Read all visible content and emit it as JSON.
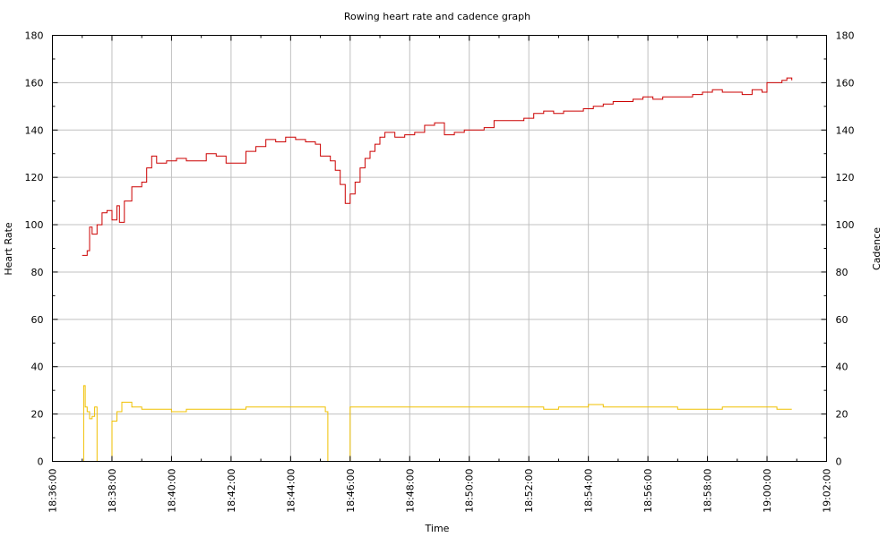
{
  "chart_data": {
    "type": "line",
    "title": "Rowing heart rate and cadence graph",
    "xlabel": "Time",
    "ylabel_left": "Heart Rate",
    "ylabel_right": "Cadence",
    "xlim": [
      "18:36:00",
      "19:02:00"
    ],
    "ylim": [
      0,
      180
    ],
    "y2lim": [
      0,
      180
    ],
    "grid": true,
    "x_ticks": [
      "18:36:00",
      "18:38:00",
      "18:40:00",
      "18:42:00",
      "18:44:00",
      "18:46:00",
      "18:48:00",
      "18:50:00",
      "18:52:00",
      "18:54:00",
      "18:56:00",
      "18:58:00",
      "19:00:00",
      "19:02:00"
    ],
    "y_ticks": [
      0,
      20,
      40,
      60,
      80,
      100,
      120,
      140,
      160,
      180
    ],
    "y2_ticks": [
      0,
      20,
      40,
      60,
      80,
      100,
      120,
      140,
      160,
      180
    ],
    "series": [
      {
        "axis": "left",
        "color": "#cc0000",
        "points": [
          [
            "18:37:00",
            87
          ],
          [
            "18:37:10",
            89
          ],
          [
            "18:37:15",
            99
          ],
          [
            "18:37:20",
            96
          ],
          [
            "18:37:30",
            100
          ],
          [
            "18:37:40",
            105
          ],
          [
            "18:37:50",
            106
          ],
          [
            "18:38:00",
            102
          ],
          [
            "18:38:10",
            108
          ],
          [
            "18:38:15",
            101
          ],
          [
            "18:38:25",
            110
          ],
          [
            "18:38:40",
            116
          ],
          [
            "18:39:00",
            118
          ],
          [
            "18:39:10",
            124
          ],
          [
            "18:39:20",
            129
          ],
          [
            "18:39:30",
            126
          ],
          [
            "18:39:50",
            127
          ],
          [
            "18:40:10",
            128
          ],
          [
            "18:40:30",
            127
          ],
          [
            "18:40:50",
            127
          ],
          [
            "18:41:10",
            130
          ],
          [
            "18:41:30",
            129
          ],
          [
            "18:41:50",
            126
          ],
          [
            "18:42:10",
            126
          ],
          [
            "18:42:30",
            131
          ],
          [
            "18:42:50",
            133
          ],
          [
            "18:43:10",
            136
          ],
          [
            "18:43:30",
            135
          ],
          [
            "18:43:50",
            137
          ],
          [
            "18:44:10",
            136
          ],
          [
            "18:44:30",
            135
          ],
          [
            "18:44:50",
            134
          ],
          [
            "18:45:00",
            129
          ],
          [
            "18:45:20",
            127
          ],
          [
            "18:45:30",
            123
          ],
          [
            "18:45:40",
            117
          ],
          [
            "18:45:50",
            109
          ],
          [
            "18:46:00",
            113
          ],
          [
            "18:46:10",
            118
          ],
          [
            "18:46:20",
            124
          ],
          [
            "18:46:30",
            128
          ],
          [
            "18:46:40",
            131
          ],
          [
            "18:46:50",
            134
          ],
          [
            "18:47:00",
            137
          ],
          [
            "18:47:10",
            139
          ],
          [
            "18:47:30",
            137
          ],
          [
            "18:47:50",
            138
          ],
          [
            "18:48:10",
            139
          ],
          [
            "18:48:30",
            142
          ],
          [
            "18:48:50",
            143
          ],
          [
            "18:49:10",
            138
          ],
          [
            "18:49:30",
            139
          ],
          [
            "18:49:50",
            140
          ],
          [
            "18:50:10",
            140
          ],
          [
            "18:50:30",
            141
          ],
          [
            "18:50:50",
            144
          ],
          [
            "18:51:10",
            144
          ],
          [
            "18:51:30",
            144
          ],
          [
            "18:51:50",
            145
          ],
          [
            "18:52:10",
            147
          ],
          [
            "18:52:30",
            148
          ],
          [
            "18:52:50",
            147
          ],
          [
            "18:53:10",
            148
          ],
          [
            "18:53:30",
            148
          ],
          [
            "18:53:50",
            149
          ],
          [
            "18:54:10",
            150
          ],
          [
            "18:54:30",
            151
          ],
          [
            "18:54:50",
            152
          ],
          [
            "18:55:10",
            152
          ],
          [
            "18:55:30",
            153
          ],
          [
            "18:55:50",
            154
          ],
          [
            "18:56:10",
            153
          ],
          [
            "18:56:30",
            154
          ],
          [
            "18:56:50",
            154
          ],
          [
            "18:57:10",
            154
          ],
          [
            "18:57:30",
            155
          ],
          [
            "18:57:50",
            156
          ],
          [
            "18:58:10",
            157
          ],
          [
            "18:58:30",
            156
          ],
          [
            "18:58:50",
            156
          ],
          [
            "18:59:10",
            155
          ],
          [
            "18:59:30",
            157
          ],
          [
            "18:59:50",
            156
          ],
          [
            "19:00:00",
            160
          ],
          [
            "19:00:20",
            160
          ],
          [
            "19:00:30",
            161
          ],
          [
            "19:00:40",
            162
          ],
          [
            "19:00:50",
            161
          ]
        ]
      },
      {
        "axis": "right",
        "color": "#f0c000",
        "points": [
          [
            "18:37:00",
            0
          ],
          [
            "18:37:03",
            32
          ],
          [
            "18:37:06",
            23
          ],
          [
            "18:37:10",
            21
          ],
          [
            "18:37:15",
            18
          ],
          [
            "18:37:20",
            19
          ],
          [
            "18:37:25",
            23
          ],
          [
            "18:37:28",
            23
          ],
          [
            "18:37:30",
            0
          ],
          [
            "18:37:57",
            0
          ],
          [
            "18:38:00",
            17
          ],
          [
            "18:38:10",
            21
          ],
          [
            "18:38:20",
            25
          ],
          [
            "18:38:40",
            23
          ],
          [
            "18:39:00",
            22
          ],
          [
            "18:39:30",
            22
          ],
          [
            "18:40:00",
            21
          ],
          [
            "18:40:30",
            22
          ],
          [
            "18:41:00",
            22
          ],
          [
            "18:41:30",
            22
          ],
          [
            "18:42:00",
            22
          ],
          [
            "18:42:30",
            23
          ],
          [
            "18:43:00",
            23
          ],
          [
            "18:43:30",
            23
          ],
          [
            "18:44:00",
            23
          ],
          [
            "18:44:30",
            23
          ],
          [
            "18:44:50",
            23
          ],
          [
            "18:45:10",
            21
          ],
          [
            "18:45:15",
            0
          ],
          [
            "18:45:55",
            0
          ],
          [
            "18:46:00",
            23
          ],
          [
            "18:46:30",
            23
          ],
          [
            "18:47:00",
            23
          ],
          [
            "18:47:30",
            23
          ],
          [
            "18:48:00",
            23
          ],
          [
            "18:48:30",
            23
          ],
          [
            "18:49:00",
            23
          ],
          [
            "18:49:30",
            23
          ],
          [
            "18:50:00",
            23
          ],
          [
            "18:50:30",
            23
          ],
          [
            "18:51:00",
            23
          ],
          [
            "18:51:30",
            23
          ],
          [
            "18:52:00",
            23
          ],
          [
            "18:52:30",
            22
          ],
          [
            "18:53:00",
            23
          ],
          [
            "18:53:30",
            23
          ],
          [
            "18:54:00",
            24
          ],
          [
            "18:54:30",
            23
          ],
          [
            "18:55:00",
            23
          ],
          [
            "18:55:30",
            23
          ],
          [
            "18:56:00",
            23
          ],
          [
            "18:56:30",
            23
          ],
          [
            "18:57:00",
            22
          ],
          [
            "18:57:30",
            22
          ],
          [
            "18:58:00",
            22
          ],
          [
            "18:58:30",
            23
          ],
          [
            "18:59:00",
            23
          ],
          [
            "18:59:30",
            23
          ],
          [
            "19:00:00",
            23
          ],
          [
            "19:00:20",
            22
          ],
          [
            "19:00:40",
            22
          ],
          [
            "19:00:50",
            22
          ]
        ]
      }
    ]
  }
}
